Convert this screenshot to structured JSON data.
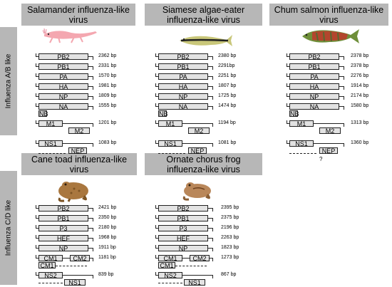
{
  "sidebar_a": {
    "label": "Influenza A/B like"
  },
  "sidebar_b": {
    "label": "Influenza C/D like"
  },
  "panels": [
    {
      "title": "Salamander influenza-like\nvirus",
      "icon": "salamander-icon",
      "segments": [
        {
          "label": "PB2",
          "length": "2362 bp"
        },
        {
          "label": "PB1",
          "length": "2331 bp"
        },
        {
          "label": "PA",
          "length": "1570 bp"
        },
        {
          "label": "HA",
          "length": "1981 bp"
        },
        {
          "label": "NP",
          "length": "1809 bp"
        },
        {
          "label": "NA",
          "label2": "NB",
          "length": "1555 bp"
        },
        {
          "label": "M1",
          "label2": "M2",
          "length": "1201 bp"
        },
        {
          "label": "NS1",
          "label2": "NEP",
          "length": "1083 bp"
        }
      ]
    },
    {
      "title": "Siamese algae-eater\ninfluenza-like virus",
      "icon": "algae-eater-fish-icon",
      "segments": [
        {
          "label": "PB2",
          "length": "2380 bp"
        },
        {
          "label": "PB1",
          "length": "2291bp"
        },
        {
          "label": "PA",
          "length": "2251 bp"
        },
        {
          "label": "HA",
          "length": "1807 bp"
        },
        {
          "label": "NP",
          "length": "1725 bp"
        },
        {
          "label": "NA",
          "label2": "NB",
          "length": "1474 bp"
        },
        {
          "label": "M1",
          "label2": "M2",
          "length": "1194 bp"
        },
        {
          "label": "NS1",
          "label2": "NEP",
          "length": "1081 bp"
        }
      ]
    },
    {
      "title": "Chum salmon influenza-like\nvirus",
      "icon": "salmon-icon",
      "segments": [
        {
          "label": "PB2",
          "length": "2378 bp"
        },
        {
          "label": "PB1",
          "length": "2378 bp"
        },
        {
          "label": "PA",
          "length": "2276 bp"
        },
        {
          "label": "HA",
          "length": "1914 bp"
        },
        {
          "label": "NP",
          "length": "2174 bp"
        },
        {
          "label": "NA",
          "label2": "NB",
          "length": "1580 bp"
        },
        {
          "label": "M1",
          "label2": "M2",
          "length": "1313 bp"
        },
        {
          "label": "NS1",
          "label2": "NEP",
          "length": "1360 bp",
          "note": "?"
        }
      ]
    },
    {
      "title": "Cane toad influenza-like\nvirus",
      "icon": "toad-icon",
      "segments": [
        {
          "label": "PB2",
          "length": "2421 bp"
        },
        {
          "label": "PB1",
          "length": "2350 bp"
        },
        {
          "label": "P3",
          "length": "2180 bp"
        },
        {
          "label": "HEF",
          "length": "1968 bp"
        },
        {
          "label": "NP",
          "length": "1911 bp"
        },
        {
          "label": "CM1",
          "label2": "CM2",
          "label3": "CM1",
          "length": "1181 bp"
        },
        {
          "label": "NS2",
          "label2": "NS1",
          "length": "839 bp"
        }
      ]
    },
    {
      "title": "Ornate chorus frog\ninfluenza-like virus",
      "icon": "frog-icon",
      "segments": [
        {
          "label": "PB2",
          "length": "2395 bp"
        },
        {
          "label": "PB1",
          "length": "2375 bp"
        },
        {
          "label": "P3",
          "length": "2196 bp"
        },
        {
          "label": "HEF",
          "length": "2263 bp"
        },
        {
          "label": "NP",
          "length": "1823 bp"
        },
        {
          "label": "CM1",
          "label2": "CM2",
          "label3": "CM1",
          "length": "1273 bp"
        },
        {
          "label": "NS2",
          "label2": "NS1",
          "length": "867 bp"
        }
      ]
    }
  ]
}
